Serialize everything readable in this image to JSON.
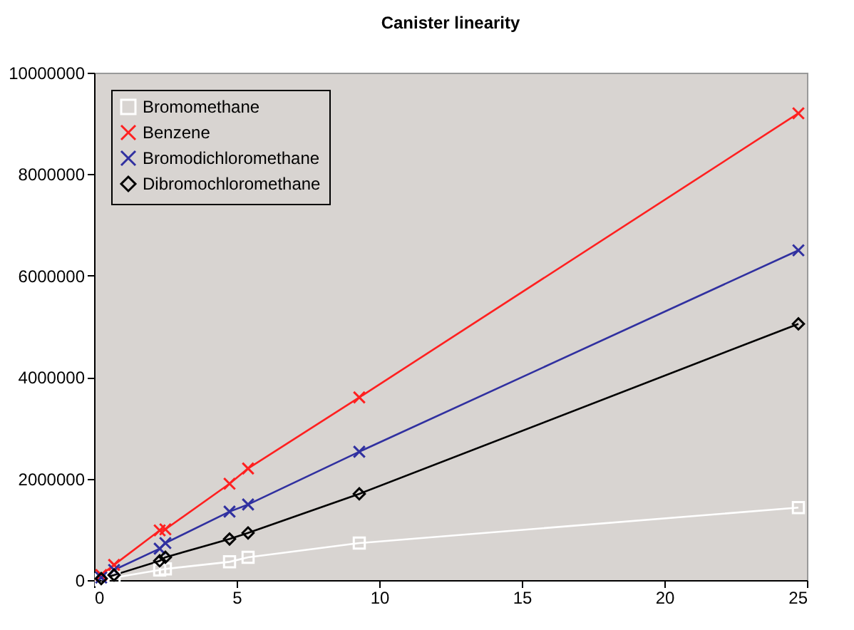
{
  "chart_data": {
    "type": "line",
    "title": "Canister linearity",
    "x": [
      0.25,
      0.7,
      2.3,
      2.5,
      4.75,
      5.4,
      9.3,
      24.7
    ],
    "series": [
      {
        "name": "Bromomethane",
        "color": "#ffffff",
        "marker": "square",
        "values": [
          10000,
          50000,
          200000,
          220000,
          360000,
          450000,
          730000,
          1430000
        ]
      },
      {
        "name": "Benzene",
        "color": "#ff2020",
        "marker": "cross",
        "values": [
          100000,
          300000,
          980000,
          1000000,
          1900000,
          2200000,
          3600000,
          9200000
        ]
      },
      {
        "name": "Bromodichloromethane",
        "color": "#3030a0",
        "marker": "cross",
        "values": [
          50000,
          200000,
          620000,
          730000,
          1350000,
          1490000,
          2530000,
          6500000
        ]
      },
      {
        "name": "Dibromochloromethane",
        "color": "#000000",
        "marker": "diamond",
        "values": [
          30000,
          100000,
          380000,
          450000,
          810000,
          930000,
          1700000,
          5050000
        ]
      }
    ],
    "line_style": "solid",
    "xlim": [
      0,
      25
    ],
    "xticks": [
      0,
      5,
      10,
      15,
      20,
      25
    ],
    "ylim": [
      0,
      10000000
    ],
    "yticks": [
      0,
      2000000,
      4000000,
      6000000,
      8000000,
      10000000
    ],
    "grid": false,
    "legend": "top left"
  }
}
